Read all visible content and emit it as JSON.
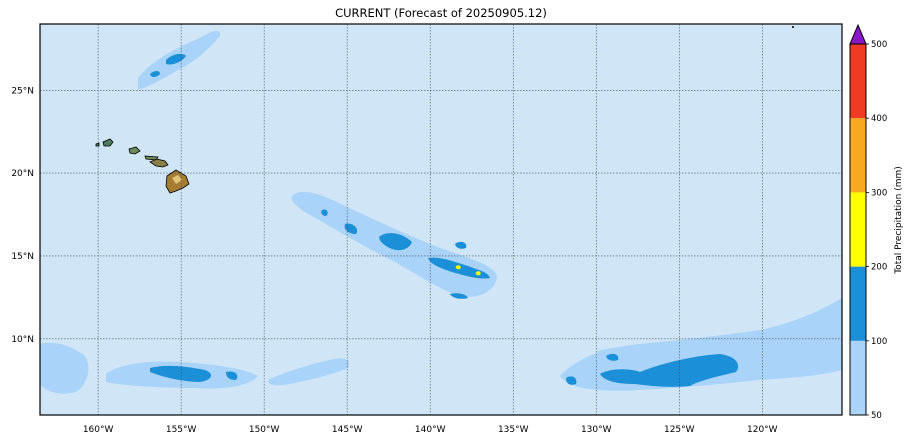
{
  "title": "CURRENT (Forecast of 20250905.12)",
  "map": {
    "lon_range": [
      -163.5,
      -115.2
    ],
    "lat_range": [
      5.4,
      29
    ],
    "lon_ticks": [
      {
        "value": -160,
        "label": "160°W"
      },
      {
        "value": -155,
        "label": "155°W"
      },
      {
        "value": -150,
        "label": "150°W"
      },
      {
        "value": -145,
        "label": "145°W"
      },
      {
        "value": -140,
        "label": "140°W"
      },
      {
        "value": -135,
        "label": "135°W"
      },
      {
        "value": -130,
        "label": "130°W"
      },
      {
        "value": -125,
        "label": "125°W"
      },
      {
        "value": -120,
        "label": "120°W"
      }
    ],
    "lat_ticks": [
      {
        "value": 25,
        "label": "25°N"
      },
      {
        "value": 20,
        "label": "20°N"
      },
      {
        "value": 15,
        "label": "15°N"
      },
      {
        "value": 10,
        "label": "10°N"
      }
    ],
    "ocean_color": "#d0e6f6",
    "grid": true
  },
  "colorbar": {
    "label": "Total Precipitation (mm)",
    "ticks": [
      "50",
      "100",
      "200",
      "300",
      "400",
      "500"
    ],
    "bins": [
      {
        "range": "50-100",
        "color": "#a9d3f8"
      },
      {
        "range": "100-200",
        "color": "#1b8fd8"
      },
      {
        "range": "200-300",
        "color": "#ffff00"
      },
      {
        "range": "300-400",
        "color": "#f6aa22"
      },
      {
        "range": "400-500",
        "color": "#ef3a24"
      },
      {
        "range": ">500",
        "color": "#8a16c8"
      }
    ]
  }
}
